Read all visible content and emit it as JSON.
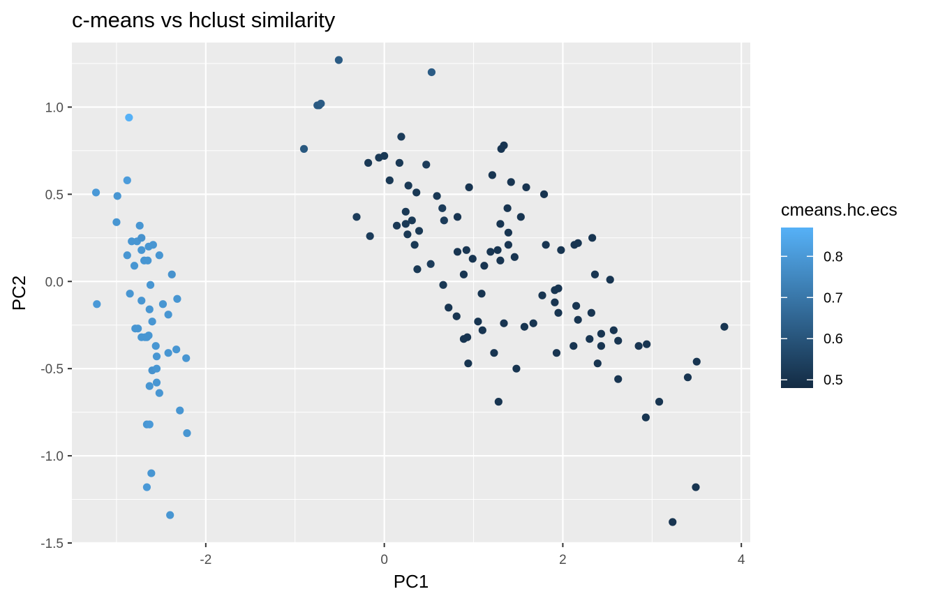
{
  "chart_data": {
    "type": "scatter",
    "title": "c-means vs hclust similarity",
    "xlabel": "PC1",
    "ylabel": "PC2",
    "xlim": [
      -3.5,
      4.1
    ],
    "ylim": [
      -1.5,
      1.37
    ],
    "x_ticks": [
      -2,
      0,
      2,
      4
    ],
    "x_tick_labels": [
      "-2",
      "0",
      "2",
      "4"
    ],
    "y_ticks": [
      -1.5,
      -1.0,
      -0.5,
      0.0,
      0.5,
      1.0
    ],
    "y_tick_labels": [
      "-1.5",
      "-1.0",
      "-0.5",
      "0.0",
      "0.5",
      "1.0"
    ],
    "grid": true,
    "colors": {
      "panel_background": "#ebebeb",
      "grid": "#ffffff",
      "low": "#132b43",
      "high": "#56b1f7"
    },
    "legend": {
      "title": "cmeans.hc.ecs",
      "position": "right",
      "range": [
        0.48,
        0.87
      ],
      "breaks": [
        0.5,
        0.6,
        0.7,
        0.8
      ],
      "labels": [
        "0.5",
        "0.6",
        "0.7",
        "0.8"
      ]
    },
    "series": [
      {
        "points": [
          [
            -3.23,
            0.51,
            0.8
          ],
          [
            -3.22,
            -0.13,
            0.8
          ],
          [
            -2.99,
            0.49,
            0.79
          ],
          [
            -3.0,
            0.34,
            0.79
          ],
          [
            -2.86,
            0.94,
            0.87
          ],
          [
            -2.88,
            0.58,
            0.81
          ],
          [
            -2.88,
            0.15,
            0.79
          ],
          [
            -2.85,
            -0.07,
            0.79
          ],
          [
            -2.83,
            0.23,
            0.79
          ],
          [
            -2.8,
            0.09,
            0.79
          ],
          [
            -2.77,
            0.23,
            0.79
          ],
          [
            -2.79,
            -0.27,
            0.79
          ],
          [
            -2.76,
            -0.27,
            0.79
          ],
          [
            -2.74,
            0.32,
            0.79
          ],
          [
            -2.72,
            0.25,
            0.78
          ],
          [
            -2.72,
            0.18,
            0.79
          ],
          [
            -2.72,
            -0.11,
            0.79
          ],
          [
            -2.72,
            -0.32,
            0.79
          ],
          [
            -2.68,
            -0.32,
            0.79
          ],
          [
            -2.69,
            0.12,
            0.79
          ],
          [
            -2.65,
            0.12,
            0.79
          ],
          [
            -2.66,
            -0.32,
            0.79
          ],
          [
            -2.64,
            -0.31,
            0.79
          ],
          [
            -2.64,
            0.2,
            0.79
          ],
          [
            -2.62,
            -0.02,
            0.79
          ],
          [
            -2.63,
            -0.16,
            0.79
          ],
          [
            -2.59,
            0.21,
            0.79
          ],
          [
            -2.6,
            -0.23,
            0.79
          ],
          [
            -2.6,
            -0.51,
            0.78
          ],
          [
            -2.56,
            -0.37,
            0.79
          ],
          [
            -2.55,
            -0.43,
            0.79
          ],
          [
            -2.55,
            -0.5,
            0.79
          ],
          [
            -2.55,
            -0.58,
            0.79
          ],
          [
            -2.52,
            -0.64,
            0.79
          ],
          [
            -2.63,
            -0.6,
            0.79
          ],
          [
            -2.66,
            -0.82,
            0.79
          ],
          [
            -2.63,
            -0.82,
            0.8
          ],
          [
            -2.61,
            -1.1,
            0.79
          ],
          [
            -2.66,
            -1.18,
            0.8
          ],
          [
            -2.4,
            -1.34,
            0.79
          ],
          [
            -2.52,
            0.15,
            0.79
          ],
          [
            -2.48,
            -0.13,
            0.79
          ],
          [
            -2.42,
            -0.19,
            0.79
          ],
          [
            -2.42,
            -0.41,
            0.79
          ],
          [
            -2.38,
            0.04,
            0.78
          ],
          [
            -2.33,
            -0.39,
            0.79
          ],
          [
            -2.32,
            -0.1,
            0.79
          ],
          [
            -2.29,
            -0.74,
            0.79
          ],
          [
            -2.22,
            -0.44,
            0.79
          ],
          [
            -2.21,
            -0.87,
            0.79
          ],
          [
            -0.51,
            1.27,
            0.62
          ],
          [
            0.53,
            1.2,
            0.62
          ],
          [
            -0.75,
            1.01,
            0.62
          ],
          [
            -0.73,
            1.01,
            0.61
          ],
          [
            -0.71,
            1.02,
            0.62
          ],
          [
            -0.9,
            0.76,
            0.61
          ],
          [
            -0.31,
            0.37,
            0.53
          ],
          [
            -0.18,
            0.68,
            0.52
          ],
          [
            -0.16,
            0.26,
            0.53
          ],
          [
            -0.06,
            0.71,
            0.52
          ],
          [
            0.0,
            0.72,
            0.52
          ],
          [
            0.06,
            0.58,
            0.52
          ],
          [
            0.14,
            0.32,
            0.52
          ],
          [
            0.17,
            0.68,
            0.52
          ],
          [
            0.19,
            0.83,
            0.53
          ],
          [
            0.24,
            0.4,
            0.52
          ],
          [
            0.24,
            0.33,
            0.52
          ],
          [
            0.26,
            0.27,
            0.52
          ],
          [
            0.27,
            0.55,
            0.52
          ],
          [
            0.31,
            0.35,
            0.52
          ],
          [
            0.34,
            0.21,
            0.52
          ],
          [
            0.36,
            0.51,
            0.52
          ],
          [
            0.37,
            0.07,
            0.52
          ],
          [
            0.39,
            0.29,
            0.52
          ],
          [
            0.47,
            0.67,
            0.53
          ],
          [
            0.52,
            0.1,
            0.53
          ],
          [
            0.59,
            0.49,
            0.52
          ],
          [
            0.65,
            0.42,
            0.53
          ],
          [
            0.66,
            -0.02,
            0.52
          ],
          [
            0.67,
            0.35,
            0.53
          ],
          [
            0.72,
            -0.15,
            0.51
          ],
          [
            0.81,
            -0.2,
            0.51
          ],
          [
            0.82,
            0.17,
            0.51
          ],
          [
            0.82,
            0.37,
            0.51
          ],
          [
            0.89,
            0.04,
            0.51
          ],
          [
            0.89,
            -0.33,
            0.51
          ],
          [
            0.92,
            0.18,
            0.51
          ],
          [
            0.93,
            -0.32,
            0.51
          ],
          [
            0.94,
            -0.47,
            0.51
          ],
          [
            0.95,
            0.54,
            0.51
          ],
          [
            0.99,
            0.13,
            0.51
          ],
          [
            1.05,
            -0.23,
            0.51
          ],
          [
            1.09,
            -0.07,
            0.51
          ],
          [
            1.1,
            -0.28,
            0.51
          ],
          [
            1.12,
            0.09,
            0.51
          ],
          [
            1.19,
            0.17,
            0.51
          ],
          [
            1.21,
            0.61,
            0.51
          ],
          [
            1.23,
            -0.41,
            0.51
          ],
          [
            1.27,
            0.18,
            0.51
          ],
          [
            1.28,
            -0.69,
            0.51
          ],
          [
            1.3,
            0.12,
            0.51
          ],
          [
            1.3,
            0.33,
            0.51
          ],
          [
            1.31,
            0.76,
            0.51
          ],
          [
            1.34,
            0.78,
            0.51
          ],
          [
            1.34,
            -0.24,
            0.51
          ],
          [
            1.39,
            0.21,
            0.51
          ],
          [
            1.39,
            0.28,
            0.51
          ],
          [
            1.38,
            0.42,
            0.51
          ],
          [
            1.42,
            0.57,
            0.51
          ],
          [
            1.46,
            0.14,
            0.51
          ],
          [
            1.48,
            -0.5,
            0.51
          ],
          [
            1.53,
            0.37,
            0.51
          ],
          [
            1.57,
            -0.26,
            0.51
          ],
          [
            1.59,
            0.54,
            0.51
          ],
          [
            1.67,
            -0.24,
            0.51
          ],
          [
            1.77,
            -0.08,
            0.51
          ],
          [
            1.79,
            0.5,
            0.51
          ],
          [
            1.81,
            0.21,
            0.51
          ],
          [
            1.91,
            -0.05,
            0.51
          ],
          [
            1.91,
            -0.12,
            0.51
          ],
          [
            1.93,
            -0.41,
            0.51
          ],
          [
            1.95,
            -0.18,
            0.51
          ],
          [
            1.95,
            -0.04,
            0.51
          ],
          [
            1.98,
            0.18,
            0.51
          ],
          [
            2.12,
            -0.37,
            0.51
          ],
          [
            2.13,
            0.21,
            0.51
          ],
          [
            2.15,
            -0.14,
            0.51
          ],
          [
            2.17,
            -0.22,
            0.51
          ],
          [
            2.17,
            0.22,
            0.51
          ],
          [
            2.3,
            -0.33,
            0.51
          ],
          [
            2.32,
            -0.18,
            0.51
          ],
          [
            2.33,
            0.25,
            0.51
          ],
          [
            2.36,
            0.04,
            0.51
          ],
          [
            2.39,
            -0.47,
            0.51
          ],
          [
            2.43,
            -0.3,
            0.51
          ],
          [
            2.43,
            -0.37,
            0.51
          ],
          [
            2.53,
            0.01,
            0.51
          ],
          [
            2.57,
            -0.28,
            0.51
          ],
          [
            2.62,
            -0.34,
            0.51
          ],
          [
            2.62,
            -0.56,
            0.51
          ],
          [
            2.85,
            -0.37,
            0.51
          ],
          [
            2.93,
            -0.78,
            0.51
          ],
          [
            2.94,
            -0.36,
            0.51
          ],
          [
            3.08,
            -0.69,
            0.51
          ],
          [
            3.23,
            -1.38,
            0.51
          ],
          [
            3.4,
            -0.55,
            0.51
          ],
          [
            3.49,
            -1.18,
            0.51
          ],
          [
            3.5,
            -0.46,
            0.51
          ],
          [
            3.81,
            -0.26,
            0.51
          ]
        ]
      }
    ]
  }
}
